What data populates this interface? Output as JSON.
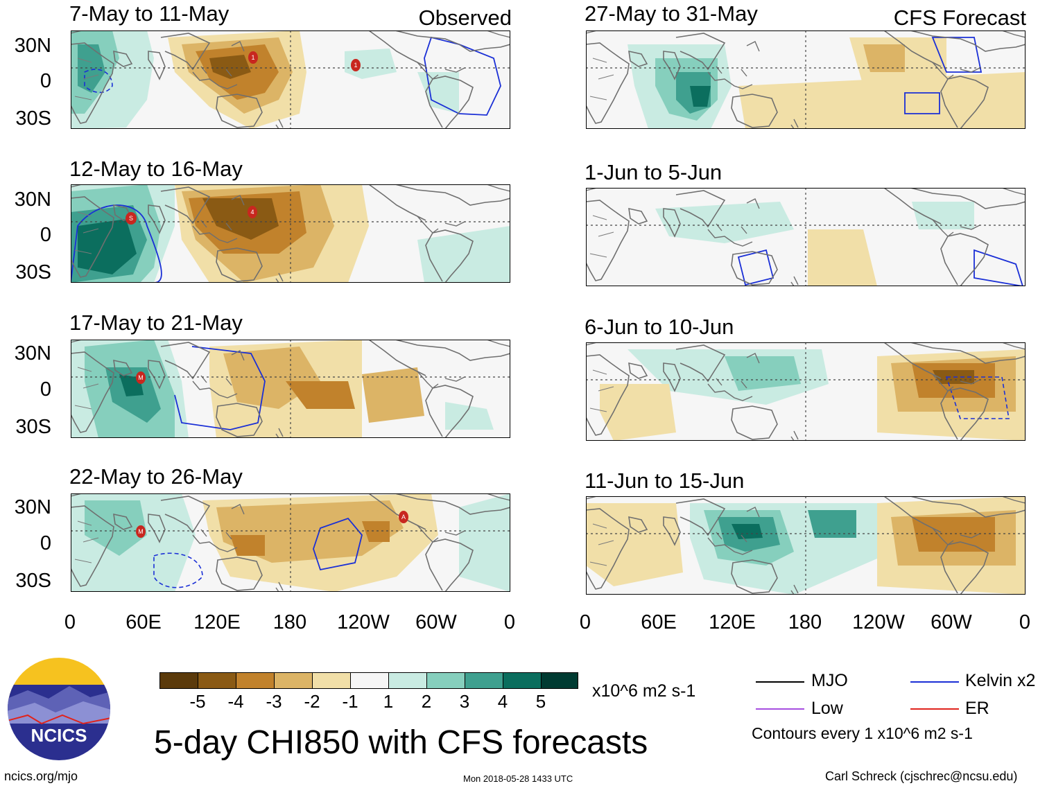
{
  "header": {
    "observed_label": "Observed",
    "forecast_label": "CFS Forecast"
  },
  "panels_left": [
    {
      "title": "7-May to 11-May",
      "kind": "observed"
    },
    {
      "title": "12-May to 16-May",
      "kind": "observed"
    },
    {
      "title": "17-May to 21-May",
      "kind": "observed"
    },
    {
      "title": "22-May to 26-May",
      "kind": "observed"
    }
  ],
  "panels_right": [
    {
      "title": "27-May to 31-May",
      "kind": "forecast"
    },
    {
      "title": "1-Jun to 5-Jun",
      "kind": "forecast"
    },
    {
      "title": "6-Jun to 10-Jun",
      "kind": "forecast"
    },
    {
      "title": "11-Jun to 15-Jun",
      "kind": "forecast"
    }
  ],
  "axes": {
    "y_ticks": [
      "30N",
      "0",
      "30S"
    ],
    "x_ticks": [
      "0",
      "60E",
      "120E",
      "180",
      "120W",
      "60W",
      "0"
    ]
  },
  "storm_markers": {
    "p1": [
      "1",
      "1"
    ],
    "p2": [
      "S",
      "4"
    ],
    "p3": [
      "M"
    ],
    "p4": [
      "M",
      "A"
    ]
  },
  "colorbar": {
    "colors": [
      "#5b3a0b",
      "#8a5a14",
      "#c1822c",
      "#dcb466",
      "#f1dfa8",
      "#f6f6f6",
      "#c9ebe2",
      "#86cfbd",
      "#3fa08f",
      "#0b6e5e",
      "#003b32"
    ],
    "ticks": [
      "-5",
      "-4",
      "-3",
      "-2",
      "-1",
      "1",
      "2",
      "3",
      "4",
      "5"
    ],
    "units": "x10^6 m2 s-1"
  },
  "legend": {
    "items": [
      {
        "label": "MJO",
        "color": "#000000"
      },
      {
        "label": "Kelvin x2",
        "color": "#1a2fd6"
      },
      {
        "label": "Low",
        "color": "#a64ee0"
      },
      {
        "label": "ER",
        "color": "#e0231c"
      }
    ],
    "contour_note": "Contours every 1 x10^6 m2 s-1"
  },
  "title": "5-day CHI850 with CFS forecasts",
  "logo": {
    "text": "NCICS"
  },
  "footer": {
    "url": "ncics.org/mjo",
    "timestamp": "Mon 2018-05-28 1433 UTC",
    "author": "Carl Schreck (cjschrec@ncsu.edu)"
  },
  "colors": {
    "neg_strong": "#5b3a0b",
    "neg_mid": "#c1822c",
    "neg_weak": "#f1dfa8",
    "pos_weak": "#c9ebe2",
    "pos_mid": "#3fa08f",
    "pos_strong": "#003b32",
    "kelvin": "#1a2fd6",
    "coast": "#6f6f6f"
  }
}
